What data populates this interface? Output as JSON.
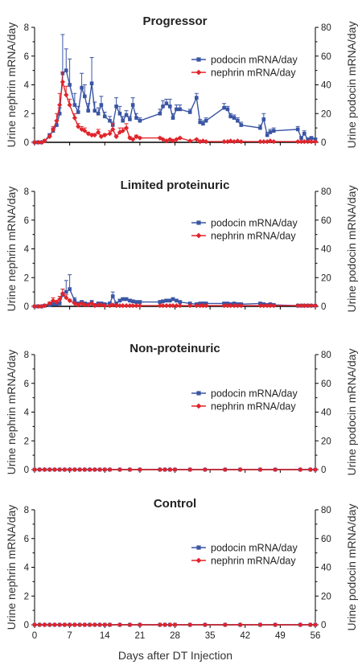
{
  "figure": {
    "xlabel": "Days after DT Injection",
    "x_ticks": [
      0,
      7,
      14,
      21,
      28,
      35,
      42,
      49,
      56
    ]
  },
  "chart_data": [
    {
      "type": "line",
      "title": "Progressor",
      "ylabel_left": "Urine nephrin mRNA/day",
      "ylabel_right": "Urine podocin mRNA/day",
      "ylim_left": [
        0,
        8
      ],
      "ylim_right": [
        0,
        80
      ],
      "y_ticks_left": [
        0,
        2,
        4,
        6,
        8
      ],
      "y_ticks_right": [
        0,
        20,
        40,
        60,
        80
      ],
      "xlim": [
        0,
        56
      ],
      "legend": "right",
      "series": [
        {
          "name": "podocin mRNA/day",
          "axis": "right",
          "color": "#3a55a4",
          "marker": "square",
          "x": [
            0,
            0.7,
            1.4,
            2,
            3,
            3.7,
            4.4,
            5,
            5.6,
            6.3,
            7,
            8,
            8.7,
            9.4,
            10,
            10.7,
            11.4,
            12,
            12.7,
            13.3,
            14,
            15,
            15.6,
            16.3,
            17,
            17.6,
            18.3,
            19,
            19.6,
            20.3,
            21,
            25,
            25.6,
            26.3,
            27,
            27.6,
            28.3,
            29,
            31,
            32.3,
            33,
            33.6,
            34.2,
            37.8,
            38.5,
            39.1,
            39.8,
            40.5,
            41.2,
            45,
            45.7,
            46.4,
            47,
            47.7,
            52.5,
            53.2,
            53.8,
            54.5,
            55.2,
            56
          ],
          "y": [
            0,
            0,
            0,
            1,
            5,
            8,
            12,
            20,
            48,
            50,
            40,
            26,
            21,
            38,
            32,
            22,
            41,
            22,
            20,
            26,
            18,
            15,
            12,
            25,
            20,
            15,
            19,
            16,
            26,
            17,
            15,
            20,
            25,
            27,
            25,
            17,
            23,
            23,
            21,
            31,
            14,
            13,
            15,
            24,
            23,
            18,
            17,
            15,
            12,
            10,
            16,
            5,
            7,
            8,
            9,
            3,
            6,
            2,
            3,
            2
          ],
          "err": [
            0,
            0,
            0,
            0,
            1,
            2,
            3,
            4,
            27,
            15,
            18,
            8,
            4,
            10,
            8,
            5,
            18,
            6,
            4,
            6,
            3,
            3,
            2,
            6,
            5,
            3,
            3,
            2,
            5,
            3,
            2,
            3,
            4,
            3,
            5,
            3,
            3,
            3,
            2,
            3,
            2,
            2,
            2,
            3,
            2,
            2,
            2,
            2,
            2,
            2,
            4,
            2,
            2,
            2,
            2,
            1,
            2,
            1,
            1,
            1
          ]
        },
        {
          "name": "nephrin mRNA/day",
          "axis": "left",
          "color": "#e0242b",
          "marker": "diamond",
          "x": [
            0,
            0.7,
            1.4,
            2,
            3,
            3.7,
            4.4,
            5,
            5.6,
            6.3,
            7,
            8,
            8.7,
            9.4,
            10,
            10.7,
            11.4,
            12,
            12.7,
            13.3,
            14,
            15,
            15.6,
            16.3,
            17,
            17.6,
            18.3,
            19,
            19.6,
            20.3,
            21,
            25,
            25.6,
            26.3,
            27,
            27.6,
            28.3,
            29,
            31,
            32.3,
            33,
            33.6,
            34.2,
            37.8,
            38.5,
            39.1,
            39.8,
            40.5,
            41.2,
            45,
            45.7,
            46.4,
            47,
            47.7,
            52.5,
            53.2,
            53.8,
            54.5,
            55.2,
            56
          ],
          "y": [
            0,
            0,
            0,
            0.1,
            0.4,
            0.9,
            1.5,
            2.6,
            4.2,
            3.3,
            2.6,
            1.7,
            1.1,
            0.9,
            0.8,
            0.6,
            0.5,
            0.5,
            0.7,
            0.4,
            0.5,
            0.6,
            0.9,
            0.4,
            0.7,
            0.8,
            1.0,
            0.3,
            0.2,
            0.4,
            0.3,
            0.3,
            0.2,
            0.1,
            0.2,
            0.1,
            0.2,
            0.3,
            0.1,
            0.2,
            0.05,
            0.1,
            0.05,
            0.05,
            0.05,
            0.1,
            0.05,
            0.1,
            0.05,
            0.05,
            0.05,
            0.05,
            0.1,
            0.05,
            0.05,
            0.05,
            0.05,
            0.05,
            0.05,
            0.05
          ],
          "err": [
            0,
            0,
            0,
            0,
            0.1,
            0.2,
            0.5,
            0.8,
            0.7,
            0.6,
            0.4,
            0.3,
            0.2,
            0.2,
            0.2,
            0.1,
            0.1,
            0.1,
            0.2,
            0.1,
            0.1,
            0.2,
            0.4,
            0.1,
            0.3,
            0.2,
            0.3,
            0.1,
            0.05,
            0.1,
            0.05,
            0.05,
            0.05,
            0,
            0.05,
            0,
            0.05,
            0.05,
            0,
            0.05,
            0,
            0,
            0,
            0,
            0,
            0,
            0,
            0,
            0,
            0,
            0,
            0,
            0,
            0,
            0,
            0,
            0,
            0,
            0,
            0
          ]
        }
      ]
    },
    {
      "type": "line",
      "title": "Limited proteinuric",
      "ylabel_left": "Urine nephrin mRNA/day",
      "ylabel_right": "Urine podocin mRNA/day",
      "ylim_left": [
        0,
        8
      ],
      "ylim_right": [
        0,
        80
      ],
      "y_ticks_left": [
        0,
        2,
        4,
        6,
        8
      ],
      "y_ticks_right": [
        0,
        20,
        40,
        60,
        80
      ],
      "xlim": [
        0,
        56
      ],
      "legend": "right",
      "series": [
        {
          "name": "podocin mRNA/day",
          "axis": "right",
          "color": "#3a55a4",
          "marker": "square",
          "x": [
            0,
            0.7,
            1.4,
            2,
            3,
            3.7,
            4.4,
            5,
            5.6,
            6.3,
            7,
            8,
            8.7,
            9.4,
            10,
            10.7,
            11.4,
            12,
            12.7,
            13.3,
            14,
            15,
            15.6,
            16.3,
            17,
            17.6,
            18.3,
            19,
            19.6,
            20.3,
            21,
            25,
            25.6,
            26.3,
            27,
            27.6,
            28.3,
            29,
            31,
            32.3,
            33,
            33.6,
            34.2,
            37.8,
            38.5,
            39.1,
            39.8,
            40.5,
            41.2,
            45,
            45.7,
            46.4,
            47,
            47.7,
            52.5,
            53.2,
            53.8,
            54.5,
            55.2,
            56
          ],
          "y": [
            0,
            0,
            0,
            0.5,
            1,
            1.5,
            1.5,
            2,
            8,
            10,
            12,
            4,
            2,
            3,
            2,
            1.5,
            3,
            1,
            2,
            2,
            1.5,
            2,
            7,
            2,
            4,
            5,
            5,
            4,
            3.5,
            3,
            3,
            3,
            3.5,
            4,
            4,
            5,
            4,
            3,
            2,
            1.5,
            2,
            2,
            2,
            2,
            2,
            1.5,
            2,
            1.5,
            1.5,
            2,
            1.5,
            1,
            1.5,
            1,
            0.5,
            0.5,
            0.5,
            0.5,
            0.5,
            0.5
          ],
          "err": [
            0,
            0,
            0,
            0,
            0,
            0.5,
            0.5,
            1,
            4,
            8,
            10,
            2,
            1,
            1,
            1,
            1,
            1,
            0.5,
            1,
            1,
            0.5,
            1,
            3,
            1,
            1,
            1,
            1,
            1,
            1,
            1,
            1,
            1,
            1,
            1,
            1,
            1,
            1,
            1,
            0.5,
            0.5,
            0.5,
            0.5,
            0.5,
            0.5,
            0.5,
            0.5,
            0.5,
            0.5,
            0.5,
            0.5,
            0.5,
            0.5,
            0.5,
            0.5,
            0.2,
            0.2,
            0.2,
            0.2,
            0.2,
            0.2
          ]
        },
        {
          "name": "nephrin mRNA/day",
          "axis": "left",
          "color": "#e0242b",
          "marker": "diamond",
          "x": [
            0,
            0.7,
            1.4,
            2,
            3,
            3.7,
            4.4,
            5,
            5.6,
            6.3,
            7,
            8,
            8.7,
            9.4,
            10,
            10.7,
            11.4,
            12,
            12.7,
            13.3,
            14,
            15,
            15.6,
            16.3,
            17,
            17.6,
            18.3,
            19,
            19.6,
            20.3,
            21,
            25,
            25.6,
            26.3,
            27,
            27.6,
            28.3,
            29,
            31,
            32.3,
            33,
            33.6,
            34.2,
            37.8,
            38.5,
            39.1,
            39.8,
            40.5,
            41.2,
            45,
            45.7,
            46.4,
            47,
            47.7,
            52.5,
            53.2,
            53.8,
            54.5,
            55.2,
            56
          ],
          "y": [
            0,
            0,
            0,
            0.05,
            0.2,
            0.4,
            0.3,
            0.5,
            0.9,
            0.6,
            0.4,
            0.2,
            0.1,
            0.2,
            0.1,
            0.1,
            0.2,
            0.05,
            0.1,
            0.1,
            0.05,
            0.05,
            0.1,
            0.05,
            0.05,
            0.05,
            0.05,
            0.05,
            0.05,
            0.05,
            0.05,
            0.05,
            0.05,
            0.05,
            0.05,
            0.05,
            0.05,
            0.05,
            0.05,
            0.05,
            0.05,
            0.05,
            0.05,
            0.05,
            0.05,
            0.05,
            0.05,
            0.05,
            0.05,
            0.05,
            0.05,
            0.05,
            0.05,
            0.05,
            0.05,
            0.05,
            0.05,
            0.05,
            0.05,
            0.05
          ],
          "err": [
            0,
            0,
            0,
            0,
            0.1,
            0.2,
            0.1,
            0.2,
            0.3,
            0.2,
            0.1,
            0.05,
            0,
            0.05,
            0,
            0,
            0.05,
            0,
            0,
            0,
            0,
            0,
            0,
            0,
            0,
            0,
            0,
            0,
            0,
            0,
            0,
            0,
            0,
            0,
            0,
            0,
            0,
            0,
            0,
            0,
            0,
            0,
            0,
            0,
            0,
            0,
            0,
            0,
            0,
            0,
            0,
            0,
            0,
            0,
            0,
            0,
            0,
            0,
            0,
            0
          ]
        }
      ]
    },
    {
      "type": "line",
      "title": "Non-proteinuric",
      "ylabel_left": "Urine nephrin mRNA/day",
      "ylabel_right": "Urine podocin mRNA/day",
      "ylim_left": [
        0,
        8
      ],
      "ylim_right": [
        0,
        80
      ],
      "y_ticks_left": [
        0,
        2,
        4,
        6,
        8
      ],
      "y_ticks_right": [
        0,
        20,
        40,
        60,
        80
      ],
      "xlim": [
        0,
        56
      ],
      "legend": "right",
      "series": [
        {
          "name": "podocin mRNA/day",
          "axis": "right",
          "color": "#3a55a4",
          "marker": "square",
          "x": [
            0,
            1,
            2,
            3,
            4,
            5,
            6,
            7,
            8,
            9,
            10,
            11,
            12,
            13,
            14,
            15,
            17,
            19,
            21,
            25,
            26,
            27,
            28,
            31,
            34,
            38,
            41,
            45,
            48,
            53,
            55,
            56
          ],
          "y": [
            0,
            0,
            0,
            0,
            0,
            0,
            0,
            0,
            0,
            0,
            0,
            0,
            0,
            0,
            0,
            0,
            0,
            0,
            0,
            0,
            0,
            0,
            0,
            0,
            0,
            0,
            0,
            0,
            0,
            0,
            0,
            0
          ]
        },
        {
          "name": "nephrin mRNA/day",
          "axis": "left",
          "color": "#e0242b",
          "marker": "diamond",
          "x": [
            0,
            1,
            2,
            3,
            4,
            5,
            6,
            7,
            8,
            9,
            10,
            11,
            12,
            13,
            14,
            15,
            17,
            19,
            21,
            25,
            26,
            27,
            28,
            31,
            34,
            38,
            41,
            45,
            48,
            53,
            55,
            56
          ],
          "y": [
            0,
            0,
            0,
            0,
            0,
            0,
            0,
            0,
            0,
            0,
            0,
            0,
            0,
            0,
            0,
            0,
            0,
            0,
            0,
            0,
            0,
            0,
            0,
            0,
            0,
            0,
            0,
            0,
            0,
            0,
            0,
            0
          ]
        }
      ]
    },
    {
      "type": "line",
      "title": "Control",
      "ylabel_left": "Urine nephrin mRNA/day",
      "ylabel_right": "Urine podocin mRNA/day",
      "ylim_left": [
        0,
        8
      ],
      "ylim_right": [
        0,
        80
      ],
      "y_ticks_left": [
        0,
        2,
        4,
        6,
        8
      ],
      "y_ticks_right": [
        0,
        20,
        40,
        60,
        80
      ],
      "xlim": [
        0,
        56
      ],
      "legend": "right",
      "series": [
        {
          "name": "podocin mRNA/day",
          "axis": "right",
          "color": "#3a55a4",
          "marker": "square",
          "x": [
            0,
            1,
            2,
            3,
            4,
            5,
            6,
            7,
            8,
            9,
            10,
            11,
            12,
            13,
            14,
            15,
            17,
            19,
            21,
            25,
            26,
            27,
            28,
            31,
            34,
            38,
            41,
            45,
            48,
            53,
            55,
            56
          ],
          "y": [
            0,
            0,
            0,
            0,
            0,
            0,
            0,
            0,
            0,
            0,
            0,
            0,
            0,
            0,
            0,
            0,
            0,
            0,
            0,
            0,
            0,
            0,
            0,
            0,
            0,
            0,
            0,
            0,
            0,
            0,
            0,
            0
          ]
        },
        {
          "name": "nephrin mRNA/day",
          "axis": "left",
          "color": "#e0242b",
          "marker": "diamond",
          "x": [
            0,
            1,
            2,
            3,
            4,
            5,
            6,
            7,
            8,
            9,
            10,
            11,
            12,
            13,
            14,
            15,
            17,
            19,
            21,
            25,
            26,
            27,
            28,
            31,
            34,
            38,
            41,
            45,
            48,
            53,
            55,
            56
          ],
          "y": [
            0,
            0,
            0,
            0,
            0,
            0,
            0,
            0,
            0,
            0,
            0,
            0,
            0,
            0,
            0,
            0,
            0,
            0,
            0,
            0,
            0,
            0,
            0,
            0,
            0,
            0,
            0,
            0,
            0,
            0,
            0,
            0
          ]
        }
      ]
    }
  ]
}
